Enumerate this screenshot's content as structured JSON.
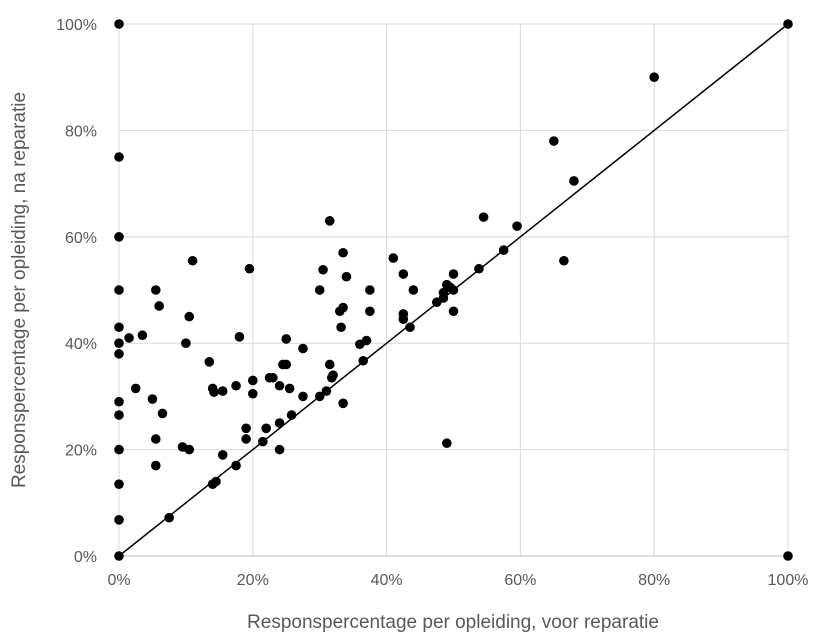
{
  "chart_data": {
    "type": "scatter",
    "title": "",
    "xlabel": "Responspercentage per opleiding, voor reparatie",
    "ylabel": "Responspercentage per opleiding, na reparatie",
    "xlim": [
      0,
      100
    ],
    "ylim": [
      0,
      100
    ],
    "x_ticks": [
      0,
      20,
      40,
      60,
      80,
      100
    ],
    "y_ticks": [
      0,
      20,
      40,
      60,
      80,
      100
    ],
    "x_tick_labels": [
      "0%",
      "20%",
      "40%",
      "60%",
      "80%",
      "100%"
    ],
    "y_tick_labels": [
      "0%",
      "20%",
      "40%",
      "60%",
      "80%",
      "100%"
    ],
    "grid": true,
    "legend": "none",
    "marker_color": "#000000",
    "grid_color": "#d9d9d9",
    "reference_line": {
      "from": [
        0,
        0
      ],
      "to": [
        100,
        100
      ]
    },
    "series": [
      {
        "points": [
          [
            0,
            100
          ],
          [
            0,
            75
          ],
          [
            0,
            60
          ],
          [
            0,
            50
          ],
          [
            0,
            43
          ],
          [
            0,
            40
          ],
          [
            0,
            38
          ],
          [
            0,
            29
          ],
          [
            0,
            26.5
          ],
          [
            0,
            20
          ],
          [
            0,
            13.5
          ],
          [
            0,
            6.8
          ],
          [
            0,
            0
          ],
          [
            100,
            100
          ],
          [
            100,
            0
          ],
          [
            1.5,
            41
          ],
          [
            2.5,
            31.5
          ],
          [
            3.5,
            41.5
          ],
          [
            5,
            29.5
          ],
          [
            5.5,
            50
          ],
          [
            5.5,
            17
          ],
          [
            5.5,
            22
          ],
          [
            6,
            47
          ],
          [
            6.5,
            26.8
          ],
          [
            7.5,
            7.2
          ],
          [
            9.5,
            20.5
          ],
          [
            10,
            40
          ],
          [
            10.5,
            20
          ],
          [
            10.5,
            45
          ],
          [
            11,
            55.5
          ],
          [
            13.5,
            36.5
          ],
          [
            14,
            13.5
          ],
          [
            14,
            31.5
          ],
          [
            14.2,
            30.8
          ],
          [
            14.5,
            14
          ],
          [
            15.5,
            19
          ],
          [
            15.5,
            31
          ],
          [
            17.5,
            17
          ],
          [
            17.5,
            32
          ],
          [
            18,
            41.2
          ],
          [
            19,
            24
          ],
          [
            19,
            22
          ],
          [
            19.5,
            54
          ],
          [
            20,
            30.5
          ],
          [
            20,
            33
          ],
          [
            21.5,
            21.5
          ],
          [
            22,
            24
          ],
          [
            22.5,
            33.5
          ],
          [
            23,
            33.5
          ],
          [
            24,
            20
          ],
          [
            24,
            25
          ],
          [
            24,
            32
          ],
          [
            24.5,
            36
          ],
          [
            25,
            40.8
          ],
          [
            25,
            36
          ],
          [
            25.5,
            31.5
          ],
          [
            25.8,
            26.5
          ],
          [
            27.5,
            30
          ],
          [
            27.5,
            39
          ],
          [
            30,
            50
          ],
          [
            30,
            30
          ],
          [
            30.5,
            53.8
          ],
          [
            31,
            31
          ],
          [
            31.5,
            36
          ],
          [
            31.5,
            63
          ],
          [
            31.8,
            33.5
          ],
          [
            32,
            34
          ],
          [
            33,
            46
          ],
          [
            33.2,
            43
          ],
          [
            33.5,
            28.7
          ],
          [
            33.5,
            57
          ],
          [
            33.5,
            46.7
          ],
          [
            34,
            52.5
          ],
          [
            36,
            39.8
          ],
          [
            36.5,
            36.7
          ],
          [
            37,
            40.5
          ],
          [
            37.5,
            50
          ],
          [
            37.5,
            46
          ],
          [
            41,
            56
          ],
          [
            42.5,
            44.5
          ],
          [
            42.5,
            45.5
          ],
          [
            42.5,
            53
          ],
          [
            43.5,
            43
          ],
          [
            44,
            50
          ],
          [
            47.5,
            47.7
          ],
          [
            48.5,
            48.5
          ],
          [
            48.5,
            49.5
          ],
          [
            49,
            51
          ],
          [
            49,
            21.2
          ],
          [
            49.5,
            50.5
          ],
          [
            50,
            53
          ],
          [
            50,
            50
          ],
          [
            50,
            46
          ],
          [
            53.8,
            54
          ],
          [
            54.5,
            63.7
          ],
          [
            57.5,
            57.5
          ],
          [
            59.5,
            62
          ],
          [
            65,
            78
          ],
          [
            66.5,
            55.5
          ],
          [
            68,
            70.5
          ],
          [
            80,
            90
          ]
        ]
      }
    ]
  }
}
